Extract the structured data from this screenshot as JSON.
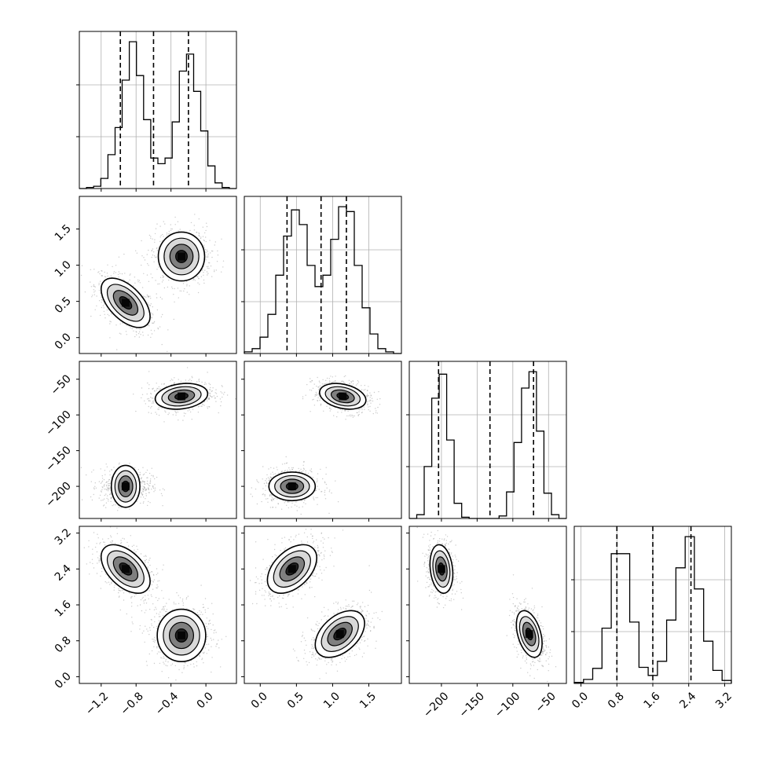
{
  "chart_data": {
    "type": "corner",
    "title": "",
    "parameters": [
      {
        "label": "",
        "range": [
          -1.45,
          0.35
        ],
        "ticks": [
          "−1.2",
          "−0.8",
          "−0.4",
          "0.0"
        ],
        "tick_values": [
          -1.2,
          -0.8,
          -0.4,
          0.0
        ]
      },
      {
        "label": "",
        "range": [
          -0.22,
          1.95
        ],
        "ticks": [
          "0.0",
          "0.5",
          "1.0",
          "1.5"
        ],
        "tick_values": [
          0.0,
          0.5,
          1.0,
          1.5
        ]
      },
      {
        "label": "",
        "range": [
          -245,
          -25
        ],
        "ticks": [
          "−200",
          "−150",
          "−100",
          "−50"
        ],
        "tick_values": [
          -200,
          -150,
          -100,
          -50
        ]
      },
      {
        "label": "",
        "range": [
          -0.15,
          3.35
        ],
        "ticks": [
          "0.0",
          "0.8",
          "1.6",
          "2.4",
          "3.2"
        ],
        "tick_values": [
          0.0,
          0.8,
          1.6,
          2.4,
          3.2
        ]
      }
    ],
    "marginal_histograms": [
      {
        "parameter": 0,
        "bin_edges_range": [
          -1.45,
          0.35
        ],
        "counts": [
          0,
          1,
          2,
          9,
          30,
          54,
          96,
          130,
          100,
          61,
          27,
          22,
          27,
          59,
          104,
          119,
          86,
          51,
          20,
          5,
          1,
          0
        ],
        "quantiles_dashed": [
          -0.98,
          -0.6,
          -0.2
        ]
      },
      {
        "parameter": 1,
        "bin_edges_range": [
          -0.22,
          1.95
        ],
        "counts": [
          1,
          3,
          10,
          24,
          48,
          72,
          88,
          79,
          54,
          41,
          48,
          70,
          90,
          87,
          54,
          28,
          12,
          3,
          1,
          0
        ],
        "quantiles_dashed": [
          0.37,
          0.84,
          1.19
        ]
      },
      {
        "parameter": 2,
        "bin_edges_range": [
          -245,
          -25
        ],
        "counts": [
          0,
          3,
          41,
          95,
          114,
          62,
          12,
          1,
          0,
          0,
          0,
          0,
          2,
          21,
          60,
          103,
          116,
          69,
          20,
          3,
          0
        ],
        "quantiles_dashed": [
          -204,
          -132,
          -71
        ]
      },
      {
        "parameter": 3,
        "bin_edges_range": [
          -0.15,
          3.35
        ],
        "counts": [
          1,
          4,
          15,
          55,
          129,
          129,
          61,
          16,
          8,
          22,
          63,
          115,
          146,
          94,
          42,
          13,
          3
        ],
        "quantiles_dashed": [
          0.8,
          1.6,
          2.45
        ]
      }
    ],
    "pair_contours": [
      {
        "x_param": 0,
        "y_param": 1,
        "modes": [
          {
            "center": [
              -0.92,
              0.48
            ],
            "sd": [
              0.14,
              0.17
            ],
            "rho": -0.55
          },
          {
            "center": [
              -0.28,
              1.12
            ],
            "sd": [
              0.14,
              0.16
            ],
            "rho": 0.0
          }
        ]
      },
      {
        "x_param": 0,
        "y_param": 2,
        "modes": [
          {
            "center": [
              -0.92,
              -200
            ],
            "sd": [
              0.12,
              10
            ],
            "rho": 0.0
          },
          {
            "center": [
              -0.28,
              -74
            ],
            "sd": [
              0.15,
              9
            ],
            "rho": 0.2
          }
        ]
      },
      {
        "x_param": 1,
        "y_param": 2,
        "modes": [
          {
            "center": [
              0.44,
              -200
            ],
            "sd": [
              0.16,
              10
            ],
            "rho": 0.0
          },
          {
            "center": [
              1.14,
              -74
            ],
            "sd": [
              0.16,
              9
            ],
            "rho": -0.3
          }
        ]
      },
      {
        "x_param": 0,
        "y_param": 3,
        "modes": [
          {
            "center": [
              -0.92,
              2.4
            ],
            "sd": [
              0.14,
              0.27
            ],
            "rho": -0.5
          },
          {
            "center": [
              -0.28,
              0.92
            ],
            "sd": [
              0.15,
              0.27
            ],
            "rho": 0.0
          }
        ]
      },
      {
        "x_param": 1,
        "y_param": 3,
        "modes": [
          {
            "center": [
              0.44,
              2.4
            ],
            "sd": [
              0.17,
              0.27
            ],
            "rho": 0.45
          },
          {
            "center": [
              1.1,
              0.95
            ],
            "sd": [
              0.17,
              0.26
            ],
            "rho": 0.45
          }
        ]
      },
      {
        "x_param": 2,
        "y_param": 3,
        "modes": [
          {
            "center": [
              -200,
              2.4
            ],
            "sd": [
              8,
              0.27
            ],
            "rho": -0.2
          },
          {
            "center": [
              -77,
              0.95
            ],
            "sd": [
              9,
              0.26
            ],
            "rho": -0.4
          }
        ]
      }
    ],
    "contour_levels_sigma": [
      0.5,
      1.0,
      1.5,
      2.0
    ],
    "grid": true,
    "colors": {
      "line": "#000000",
      "grid": "#b0b0b0",
      "scatter": "#8c8c8c",
      "fill_outer": "#ffffff",
      "fill_mid": "#d9d9d9",
      "fill_inner": "#7f7f7f",
      "fill_core": "#222222"
    }
  }
}
